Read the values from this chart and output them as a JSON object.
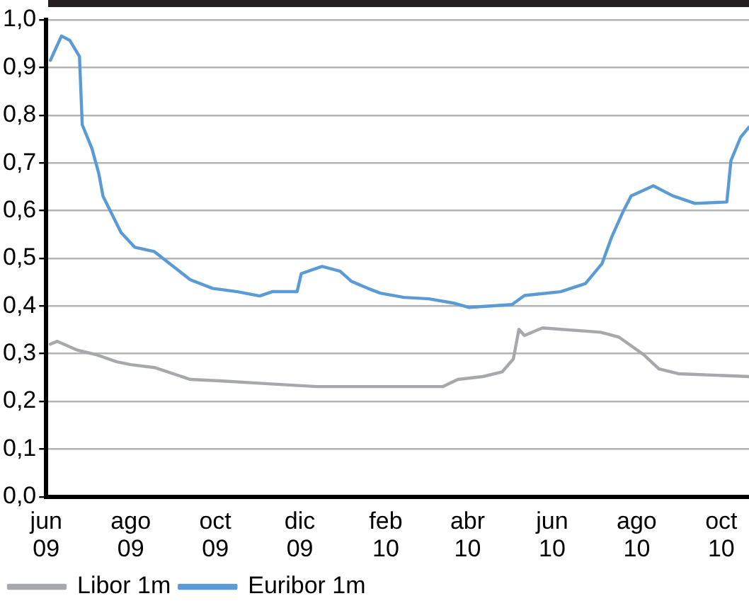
{
  "chart_data": {
    "type": "line",
    "x": [
      "2009-06-04",
      "2009-06-09",
      "2009-06-12",
      "2009-06-18",
      "2009-06-23",
      "2009-06-25",
      "2009-06-27",
      "2009-07-04",
      "2009-07-07",
      "2009-07-09",
      "2009-07-12",
      "2009-07-22",
      "2009-07-25",
      "2009-08-01",
      "2009-08-04",
      "2009-08-18",
      "2009-08-29",
      "2009-09-13",
      "2009-09-29",
      "2009-10-04",
      "2009-10-17",
      "2009-11-02",
      "2009-11-08",
      "2009-11-11",
      "2009-11-29",
      "2009-12-02",
      "2009-12-13",
      "2009-12-17",
      "2009-12-30",
      "2010-01-07",
      "2010-01-19",
      "2010-01-28",
      "2010-02-14",
      "2010-03-04",
      "2010-03-14",
      "2010-03-22",
      "2010-03-25",
      "2010-04-02",
      "2010-04-12",
      "2010-04-26",
      "2010-05-03",
      "2010-05-04",
      "2010-05-08",
      "2010-05-12",
      "2010-05-25",
      "2010-06-07",
      "2010-06-25",
      "2010-07-06",
      "2010-07-07",
      "2010-07-14",
      "2010-07-19",
      "2010-07-22",
      "2010-07-28",
      "2010-08-06",
      "2010-08-13",
      "2010-08-17",
      "2010-08-27",
      "2010-08-31",
      "2010-09-12",
      "2010-10-05",
      "2010-10-08",
      "2010-10-15",
      "2010-10-21"
    ],
    "series": [
      {
        "name": "Libor 1m",
        "color": "#a6a8ab",
        "values": [
          0.32,
          0.326,
          null,
          null,
          0.308,
          null,
          null,
          null,
          0.298,
          null,
          null,
          0.283,
          null,
          0.277,
          null,
          0.271,
          null,
          0.246,
          null,
          0.243,
          null,
          null,
          0.237,
          null,
          null,
          null,
          0.231,
          null,
          null,
          null,
          null,
          null,
          null,
          null,
          0.231,
          null,
          0.246,
          null,
          0.252,
          0.262,
          null,
          0.289,
          0.351,
          0.338,
          0.354,
          null,
          null,
          0.345,
          null,
          null,
          0.335,
          null,
          null,
          0.298,
          null,
          0.268,
          null,
          0.258,
          null,
          null,
          null,
          null,
          0.252
        ]
      },
      {
        "name": "Euribor 1m",
        "color": "#5b9bd5",
        "values": [
          0.915,
          null,
          0.966,
          0.957,
          null,
          0.923,
          0.78,
          0.73,
          null,
          0.677,
          0.63,
          null,
          0.554,
          null,
          0.523,
          0.514,
          0.489,
          0.455,
          0.437,
          null,
          0.43,
          0.421,
          null,
          0.43,
          0.43,
          0.468,
          null,
          0.483,
          0.473,
          0.452,
          0.437,
          0.427,
          0.418,
          0.415,
          null,
          0.406,
          null,
          0.397,
          null,
          null,
          0.403,
          null,
          null,
          0.422,
          null,
          0.43,
          0.447,
          null,
          0.489,
          0.545,
          null,
          0.597,
          0.631,
          null,
          0.652,
          null,
          0.631,
          null,
          0.615,
          0.618,
          0.705,
          0.754,
          0.775
        ]
      }
    ],
    "xlim": [
      "2009-06-01",
      "2010-10-21"
    ],
    "xticks": [
      {
        "value": "2009-06-01",
        "label": "jun 09"
      },
      {
        "value": "2009-08-01",
        "label": "ago 09"
      },
      {
        "value": "2009-10-01",
        "label": "oct 09"
      },
      {
        "value": "2009-12-01",
        "label": "dic 09"
      },
      {
        "value": "2010-02-01",
        "label": "feb 10"
      },
      {
        "value": "2010-04-01",
        "label": "abr 10"
      },
      {
        "value": "2010-06-01",
        "label": "jun 10"
      },
      {
        "value": "2010-08-01",
        "label": "ago 10"
      },
      {
        "value": "2010-10-01",
        "label": "oct 10"
      }
    ],
    "ylim": [
      0,
      1
    ],
    "yticks": [
      {
        "value": 0,
        "label": "0,0"
      },
      {
        "value": 0.1,
        "label": "0,1"
      },
      {
        "value": 0.2,
        "label": "0,2"
      },
      {
        "value": 0.3,
        "label": "0,3"
      },
      {
        "value": 0.4,
        "label": "0,4"
      },
      {
        "value": 0.5,
        "label": "0,5"
      },
      {
        "value": 0.6,
        "label": "0,6"
      },
      {
        "value": 0.7,
        "label": "0,7"
      },
      {
        "value": 0.8,
        "label": "0,8"
      },
      {
        "value": 0.9,
        "label": "0,9"
      },
      {
        "value": 1,
        "label": "1,0"
      }
    ],
    "grid": "y",
    "legend": "bottom",
    "marker": "none",
    "line_style": "solid"
  }
}
